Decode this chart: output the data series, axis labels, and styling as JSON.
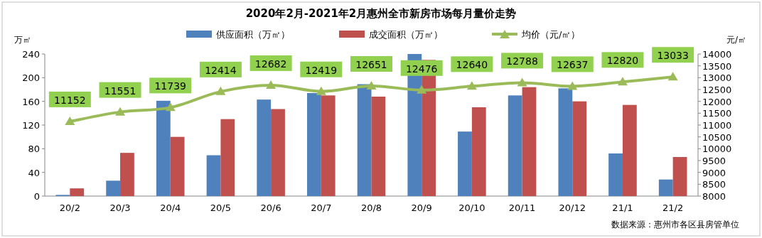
{
  "chart_data": {
    "type": "bar",
    "title": "2020年2月-2021年2月惠州全市新房市场每月量价走势",
    "ylabel": "万㎡",
    "y2label": "元/㎡",
    "categories": [
      "20/2",
      "20/3",
      "20/4",
      "20/5",
      "20/6",
      "20/7",
      "20/8",
      "20/9",
      "20/10",
      "20/11",
      "20/12",
      "21/1",
      "21/2"
    ],
    "series": [
      {
        "name": "供应面积（万㎡）",
        "color": "#4f81bd",
        "values": [
          2,
          26,
          161,
          69,
          163,
          174,
          189,
          240,
          109,
          170,
          182,
          72,
          28
        ]
      },
      {
        "name": "成交面积（万㎡）",
        "color": "#c0504d",
        "values": [
          13,
          73,
          100,
          130,
          147,
          170,
          168,
          230,
          150,
          184,
          160,
          154,
          66
        ]
      },
      {
        "name": "均价（元/㎡）",
        "type": "line",
        "axis": "y2",
        "color": "#9bbb59",
        "marker": "triangle",
        "values": [
          11152,
          11551,
          11739,
          12414,
          12682,
          12419,
          12651,
          12476,
          12640,
          12788,
          12637,
          12820,
          13033
        ],
        "value_labels": [
          "11152",
          "11551",
          "11739",
          "12414",
          "12682",
          "12419",
          "12651",
          "12476",
          "12640",
          "12788",
          "12637",
          "12820",
          "13033"
        ]
      }
    ],
    "ylim": [
      0,
      240
    ],
    "yticks": [
      0,
      40,
      80,
      120,
      160,
      200,
      240
    ],
    "y2lim": [
      8000,
      14000
    ],
    "y2ticks": [
      8000,
      8500,
      9000,
      9500,
      10000,
      10500,
      11000,
      11500,
      12000,
      12500,
      13000,
      13500,
      14000
    ],
    "grid": false,
    "legend": "top",
    "annotations": [
      "数据来源：惠州市各区县房管单位"
    ]
  }
}
